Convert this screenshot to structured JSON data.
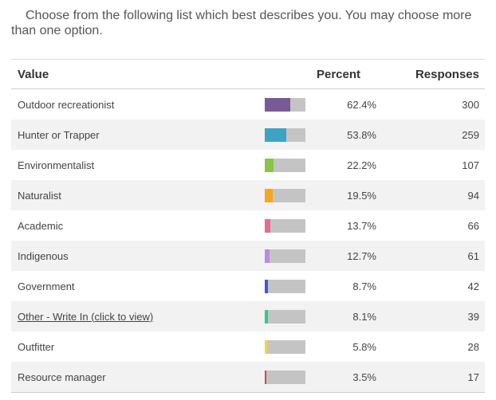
{
  "question": "Choose from the following list which best describes you. You may choose more than one option.",
  "columns": {
    "value": "Value",
    "percent": "Percent",
    "responses": "Responses"
  },
  "rows": [
    {
      "label": "Outdoor recreationist",
      "percent": "62.4%",
      "fraction": 0.624,
      "responses": "300",
      "color": "#7a5a94"
    },
    {
      "label": "Hunter or Trapper",
      "percent": "53.8%",
      "fraction": 0.538,
      "responses": "259",
      "color": "#3ea2c3"
    },
    {
      "label": "Environmentalist",
      "percent": "22.2%",
      "fraction": 0.222,
      "responses": "107",
      "color": "#8bc34a"
    },
    {
      "label": "Naturalist",
      "percent": "19.5%",
      "fraction": 0.195,
      "responses": "94",
      "color": "#f5a623"
    },
    {
      "label": "Academic",
      "percent": "13.7%",
      "fraction": 0.137,
      "responses": "66",
      "color": "#e86a92"
    },
    {
      "label": "Indigenous",
      "percent": "12.7%",
      "fraction": 0.127,
      "responses": "61",
      "color": "#b98be0"
    },
    {
      "label": "Government",
      "percent": "8.7%",
      "fraction": 0.087,
      "responses": "42",
      "color": "#3b5bcf"
    },
    {
      "label": "Other - Write In (click to view)",
      "percent": "8.1%",
      "fraction": 0.081,
      "responses": "39",
      "color": "#2ecc8f",
      "link": true
    },
    {
      "label": "Outfitter",
      "percent": "5.8%",
      "fraction": 0.058,
      "responses": "28",
      "color": "#f2d24a"
    },
    {
      "label": "Resource manager",
      "percent": "3.5%",
      "fraction": 0.035,
      "responses": "17",
      "color": "#c0504d"
    }
  ]
}
